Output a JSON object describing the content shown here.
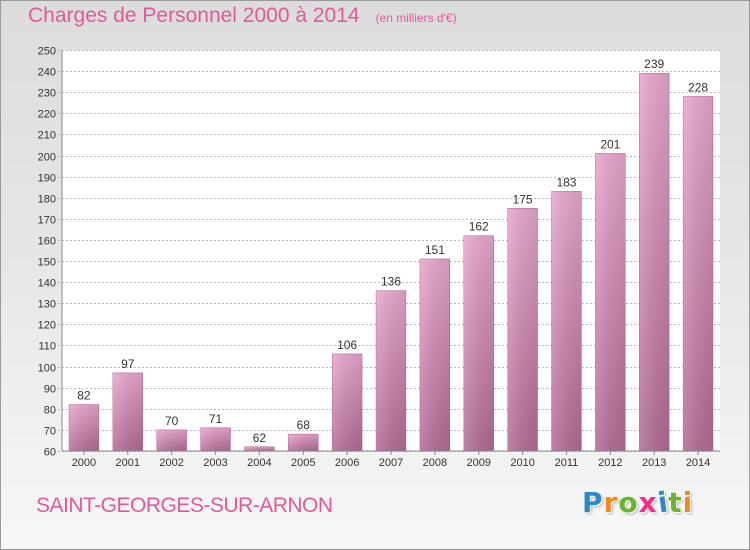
{
  "header": {
    "title": "Charges de Personnel 2000 à 2014",
    "unit": "(en milliers d'€)"
  },
  "footer": {
    "place": "SAINT-GEORGES-SUR-ARNON",
    "logo": "Proxiti",
    "logo_colors": [
      "#2e88c8",
      "#f08a1c",
      "#6ab42e",
      "#e8328c",
      "#2e88c8",
      "#6ab42e",
      "#f08a1c"
    ]
  },
  "colors": {
    "title": "#e05a9a",
    "bar_light": "#e8a6cd",
    "bar_dark": "#b26a95",
    "grid": "#bbbbbb",
    "axis_text": "#333333"
  },
  "chart_data": {
    "type": "bar",
    "title": "Charges de Personnel 2000 à 2014",
    "subtitle": "(en milliers d'€)",
    "categories": [
      "2000",
      "2001",
      "2002",
      "2003",
      "2004",
      "2005",
      "2006",
      "2007",
      "2008",
      "2009",
      "2010",
      "2011",
      "2012",
      "2013",
      "2014"
    ],
    "values": [
      82,
      97,
      70,
      71,
      62,
      68,
      106,
      136,
      151,
      162,
      175,
      183,
      201,
      239,
      228
    ],
    "ylim": [
      60,
      250
    ],
    "ytick_step": 10,
    "xlabel": "",
    "ylabel": "",
    "grid": true
  }
}
